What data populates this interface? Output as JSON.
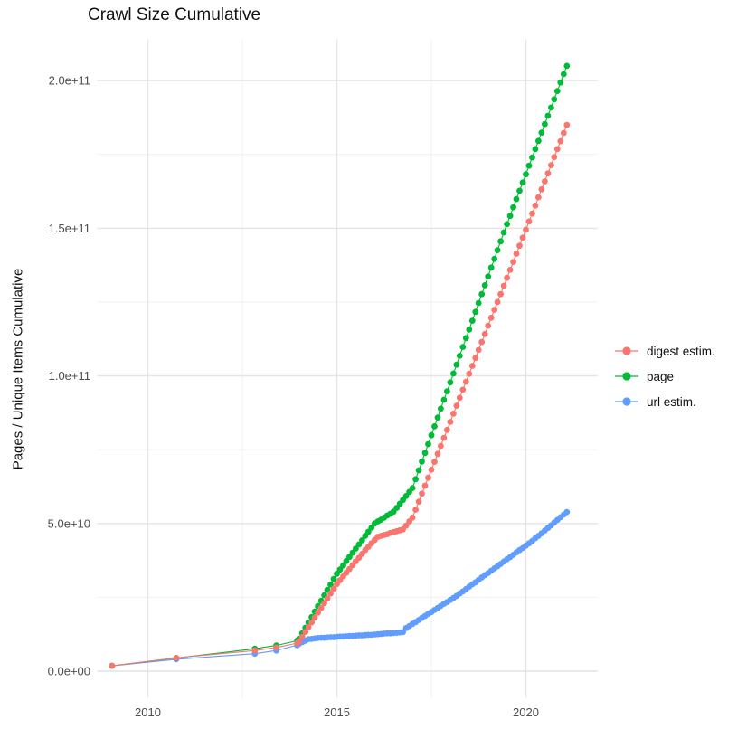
{
  "title": "Crawl Size Cumulative",
  "chart_data": {
    "type": "scatter",
    "title": "Crawl Size Cumulative",
    "xlabel": "",
    "ylabel": "Pages / Unique Items Cumulative",
    "unit": "pages, billions (1e9) — tick labels shown in scientific notation",
    "grid": true,
    "legend_position": "right",
    "xlim": [
      2008.66,
      2021.9
    ],
    "ylim_e9": [
      -9,
      214
    ],
    "x_ticks": [
      {
        "value": 2010,
        "label": "2010"
      },
      {
        "value": 2015,
        "label": "2015"
      },
      {
        "value": 2020,
        "label": "2020"
      }
    ],
    "x_minor": [
      2012.5,
      2017.5
    ],
    "y_ticks": [
      {
        "value": 0,
        "label": "0.0e+00"
      },
      {
        "value": 50,
        "label": "5.0e+10"
      },
      {
        "value": 100,
        "label": "1.0e+11"
      },
      {
        "value": 150,
        "label": "1.5e+11"
      },
      {
        "value": 200,
        "label": "2.0e+11"
      }
    ],
    "y_minor": [
      25,
      75,
      125,
      175
    ],
    "series": [
      {
        "name": "digest estim.",
        "color": "#F8766D",
        "sparse_points": [
          [
            2009.05,
            1.8
          ],
          [
            2010.75,
            4.5
          ],
          [
            2012.83,
            7.0
          ],
          [
            2013.4,
            8.0
          ],
          [
            2013.95,
            9.5
          ]
        ],
        "monthly": {
          "start_year": 2014.0,
          "step_years": 0.0833333,
          "values": [
            10.0,
            11.6,
            13.3,
            14.9,
            16.5,
            18.1,
            19.8,
            21.4,
            23.0,
            24.6,
            26.3,
            27.9,
            29.5,
            30.8,
            32.1,
            33.3,
            34.6,
            35.9,
            37.2,
            38.4,
            39.7,
            41.0,
            42.1,
            43.3,
            44.4,
            45.5,
            45.8,
            46.1,
            46.4,
            46.8,
            47.1,
            47.4,
            47.7,
            48.0,
            49.3,
            50.7,
            52.0,
            54.7,
            57.4,
            60.1,
            62.8,
            65.5,
            68.2,
            70.9,
            73.6,
            76.3,
            79.0,
            81.7,
            84.4,
            87.2,
            89.9,
            92.6,
            95.3,
            98.0,
            100.7,
            103.4,
            106.1,
            108.8,
            111.5,
            114.2,
            117.0,
            119.7,
            122.4,
            125.0,
            127.7,
            130.5,
            133.2,
            135.9,
            138.6,
            141.4,
            144.1,
            146.8,
            149.5,
            152.3,
            155.0,
            157.7,
            160.5,
            163.2,
            165.9,
            168.6,
            171.4,
            174.1,
            176.8,
            179.5,
            182.3,
            185.0
          ]
        }
      },
      {
        "name": "page",
        "color": "#00BA38",
        "sparse_points": [
          [
            2009.05,
            1.8
          ],
          [
            2010.75,
            4.4
          ],
          [
            2012.83,
            7.6
          ],
          [
            2013.4,
            8.7
          ],
          [
            2013.95,
            10.3
          ]
        ],
        "monthly": {
          "start_year": 2014.0,
          "step_years": 0.0833333,
          "values": [
            11.0,
            12.8,
            14.7,
            16.5,
            18.3,
            20.2,
            22.0,
            23.8,
            25.7,
            27.5,
            29.3,
            31.2,
            33.0,
            34.4,
            35.8,
            37.3,
            38.7,
            40.1,
            41.5,
            42.9,
            44.3,
            45.8,
            47.2,
            48.6,
            50.0,
            50.7,
            51.3,
            52.0,
            52.7,
            53.3,
            54.0,
            55.3,
            56.7,
            58.0,
            59.3,
            60.7,
            62.0,
            65.0,
            68.0,
            71.0,
            73.9,
            76.9,
            79.9,
            82.9,
            85.9,
            88.9,
            91.9,
            94.8,
            97.8,
            100.8,
            103.8,
            106.8,
            109.8,
            112.8,
            115.7,
            118.7,
            121.7,
            124.7,
            127.7,
            130.7,
            133.7,
            136.7,
            139.6,
            142.6,
            145.6,
            148.6,
            151.4,
            154.2,
            157.1,
            159.9,
            162.7,
            165.5,
            168.3,
            171.2,
            174.0,
            176.8,
            179.6,
            182.4,
            185.3,
            188.1,
            190.9,
            193.7,
            196.5,
            199.4,
            202.2,
            205.0
          ]
        }
      },
      {
        "name": "url estim.",
        "color": "#619CFF",
        "sparse_points": [
          [
            2009.05,
            1.8
          ],
          [
            2010.75,
            4.0
          ],
          [
            2012.83,
            5.9
          ],
          [
            2013.4,
            7.0
          ],
          [
            2013.95,
            8.8
          ]
        ],
        "monthly": {
          "start_year": 2014.0,
          "step_years": 0.0833333,
          "values": [
            9.3,
            9.8,
            10.3,
            10.8,
            10.9,
            11.1,
            11.2,
            11.3,
            11.3,
            11.4,
            11.5,
            11.5,
            11.6,
            11.7,
            11.7,
            11.8,
            11.9,
            11.9,
            12.0,
            12.1,
            12.1,
            12.2,
            12.3,
            12.3,
            12.4,
            12.5,
            12.6,
            12.7,
            12.8,
            12.8,
            12.9,
            13.0,
            13.1,
            13.2,
            14.6,
            15.3,
            16.0,
            16.6,
            17.3,
            18.0,
            18.7,
            19.4,
            20.0,
            20.7,
            21.4,
            22.1,
            22.8,
            23.4,
            24.1,
            24.8,
            25.5,
            26.3,
            27.0,
            27.8,
            28.6,
            29.4,
            30.1,
            30.9,
            31.7,
            32.5,
            33.2,
            34.0,
            34.8,
            35.5,
            36.3,
            37.1,
            37.9,
            38.6,
            39.4,
            40.2,
            41.0,
            41.7,
            42.5,
            43.3,
            44.1,
            45.0,
            45.8,
            46.7,
            47.6,
            48.5,
            49.4,
            50.3,
            51.2,
            52.1,
            53.0,
            53.9
          ]
        }
      }
    ],
    "style": {
      "major_grid_color": "#e4e4e4",
      "minor_grid_color": "#f0f0f0",
      "tick_label_color": "#4d4d4d",
      "text_color": "#111111",
      "background": "#ffffff"
    }
  }
}
